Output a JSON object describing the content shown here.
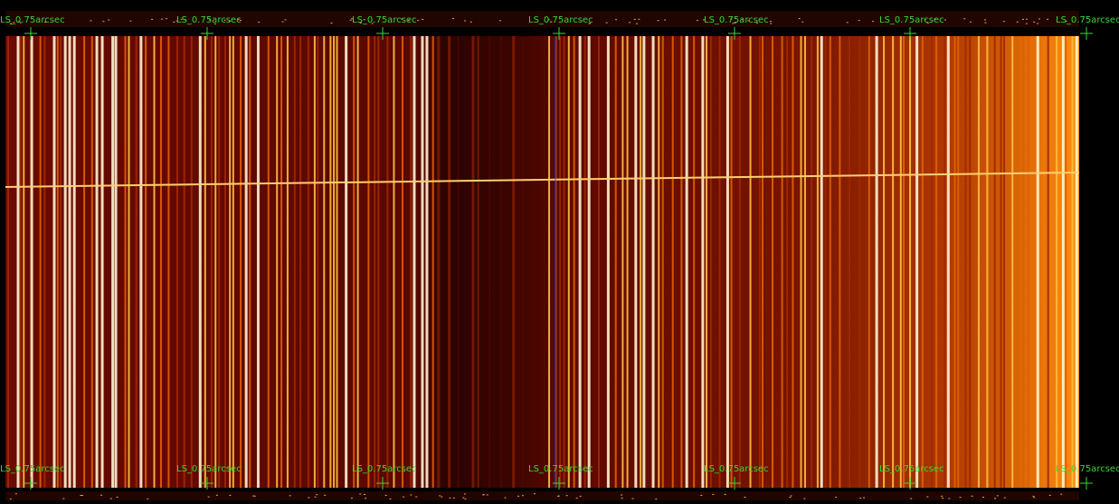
{
  "labels": {
    "top": [
      "LS_0.75arcsec",
      "LS_0.75arcsec",
      "LS_0.75arcsec",
      "LS_0.75arcsec",
      "LS_0.75arcsec",
      "LS_0.75arcsec",
      "LS_0.75arcsec"
    ],
    "bottom": [
      "LS_0.75arcsec",
      "LS_0.75arcsec",
      "LS_0.75arcsec",
      "LS_0.75arcsec",
      "LS_0.75arcsec",
      "LS_0.75arcsec",
      "LS_0.75arcsec"
    ]
  }
}
